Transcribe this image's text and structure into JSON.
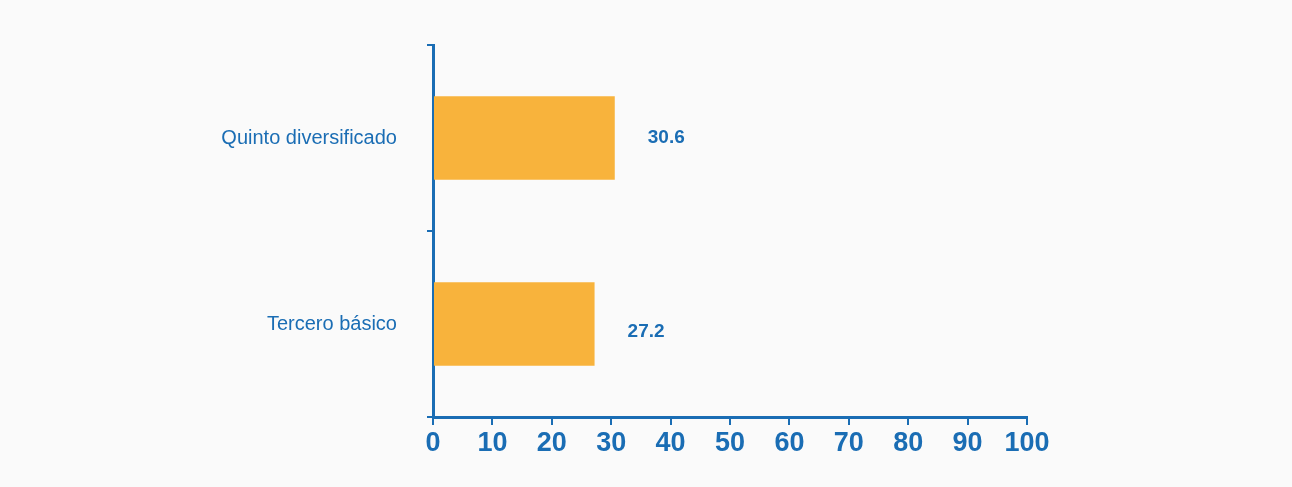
{
  "chart_data": {
    "type": "bar",
    "orientation": "horizontal",
    "categories": [
      "Quinto diversificado",
      "Tercero básico"
    ],
    "values": [
      30.6,
      27.2
    ],
    "color": "#f8b33c",
    "xlim": [
      0,
      100
    ],
    "xticks": [
      0,
      10,
      20,
      30,
      40,
      50,
      60,
      70,
      80,
      90,
      100
    ],
    "data_labels": true,
    "grid": false,
    "legend": false
  }
}
